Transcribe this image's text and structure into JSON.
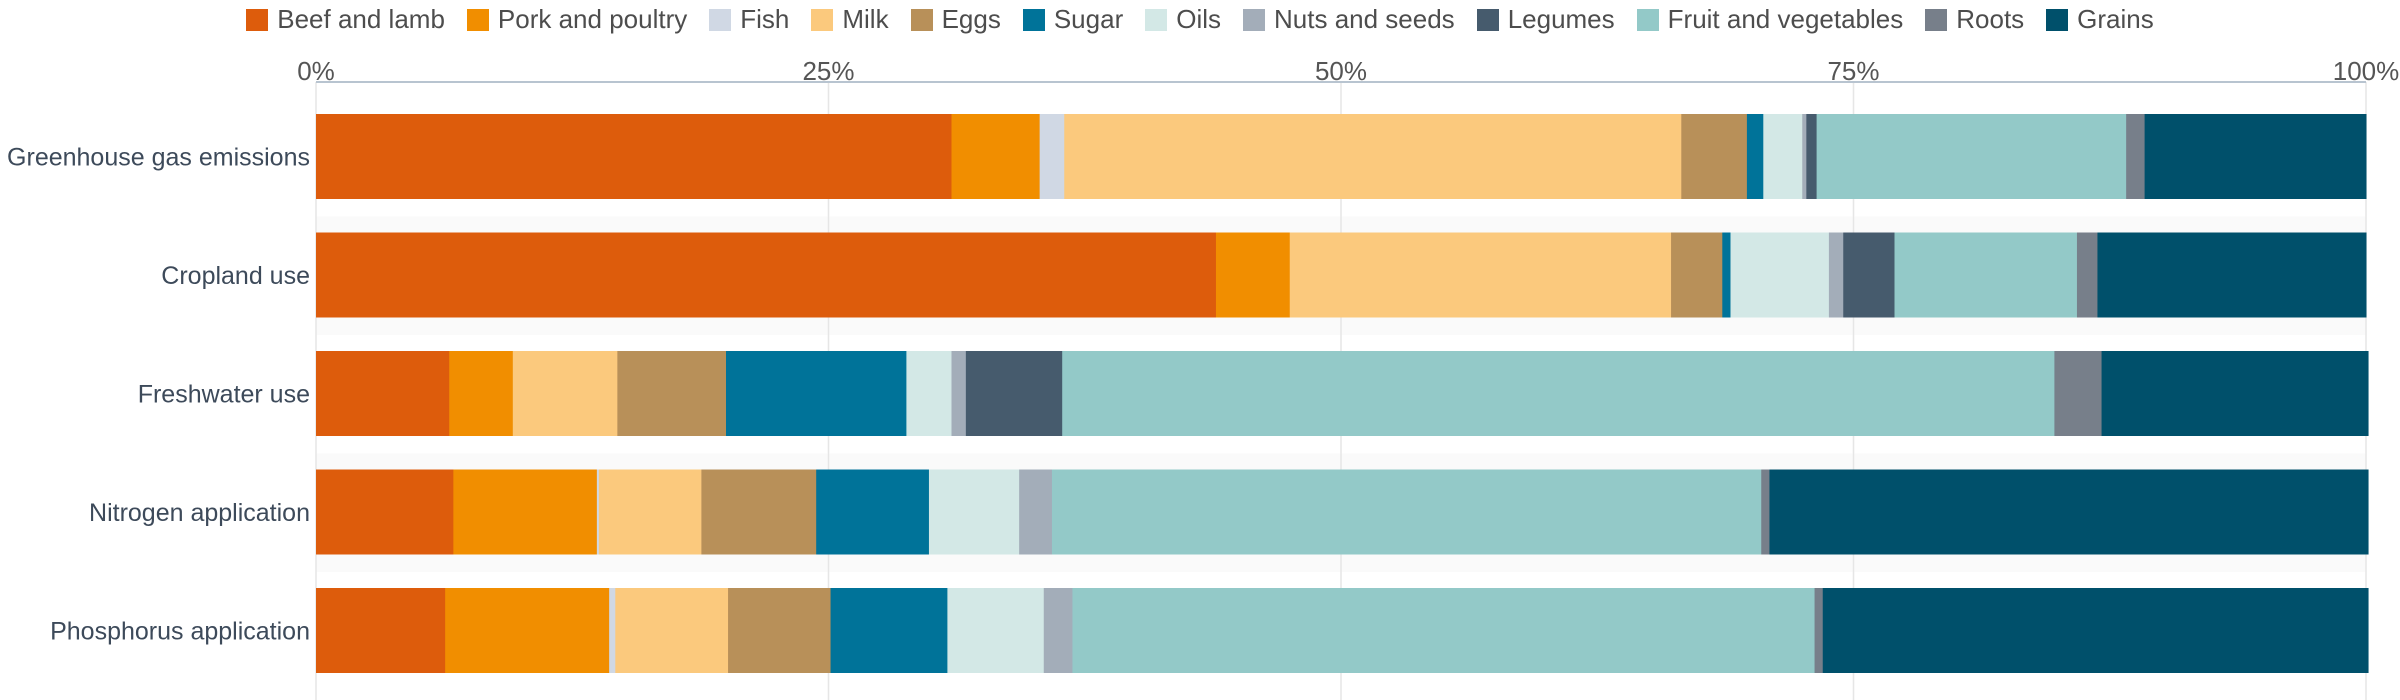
{
  "chart_data": {
    "type": "bar",
    "orientation": "horizontal",
    "stacked": true,
    "percent": true,
    "title": "",
    "xlabel": "",
    "ylabel": "",
    "xlim": [
      0,
      100
    ],
    "x_ticks": [
      "0%",
      "25%",
      "50%",
      "75%",
      "100%"
    ],
    "x_tick_values": [
      0,
      25,
      50,
      75,
      100
    ],
    "grid": true,
    "legend_position": "top",
    "categories": [
      "Greenhouse gas emissions",
      "Cropland use",
      "Freshwater use",
      "Nitrogen application",
      "Phosphorus application"
    ],
    "series": [
      {
        "name": "Beef and lamb",
        "color": "#dd5c0c",
        "values": [
          31.0,
          43.9,
          6.5,
          6.7,
          6.3
        ]
      },
      {
        "name": "Pork and poultry",
        "color": "#f18e00",
        "values": [
          4.3,
          3.6,
          3.1,
          7.0,
          8.0
        ]
      },
      {
        "name": "Fish",
        "color": "#d0d8e4",
        "values": [
          1.2,
          0.0,
          0.0,
          0.1,
          0.3
        ]
      },
      {
        "name": "Milk",
        "color": "#fbc97d",
        "values": [
          30.1,
          18.6,
          5.1,
          5.0,
          5.5
        ]
      },
      {
        "name": "Eggs",
        "color": "#b89059",
        "values": [
          3.2,
          2.5,
          5.3,
          5.6,
          5.0
        ]
      },
      {
        "name": "Sugar",
        "color": "#007399",
        "values": [
          0.8,
          0.4,
          8.8,
          5.5,
          5.7
        ]
      },
      {
        "name": "Oils",
        "color": "#d3e8e6",
        "values": [
          1.9,
          4.8,
          2.2,
          4.4,
          4.7
        ]
      },
      {
        "name": "Nuts and seeds",
        "color": "#a3adb9",
        "values": [
          0.2,
          0.7,
          0.7,
          1.6,
          1.4
        ]
      },
      {
        "name": "Legumes",
        "color": "#465b6d",
        "values": [
          0.5,
          2.5,
          4.7,
          0.0,
          0.0
        ]
      },
      {
        "name": "Fruit and vegetables",
        "color": "#93c9c8",
        "values": [
          15.1,
          8.9,
          48.4,
          34.6,
          36.2
        ]
      },
      {
        "name": "Roots",
        "color": "#777f8a",
        "values": [
          0.9,
          1.0,
          2.3,
          0.4,
          0.4
        ]
      },
      {
        "name": "Grains",
        "color": "#00506b",
        "values": [
          10.8,
          13.1,
          13.0,
          29.2,
          26.6
        ]
      }
    ]
  }
}
